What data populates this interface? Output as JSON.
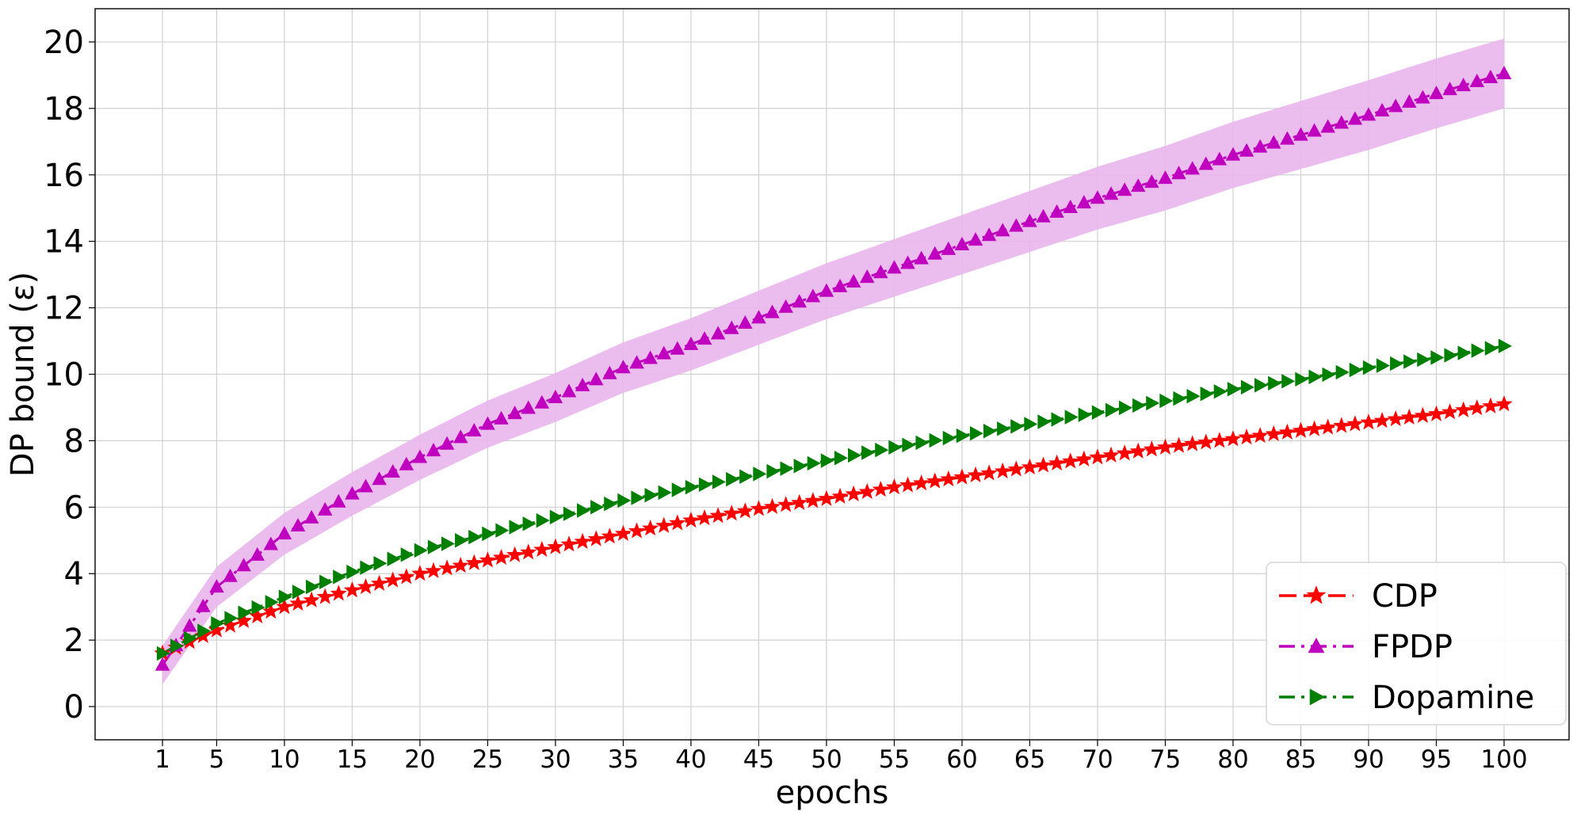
{
  "chart_data": {
    "type": "line",
    "xlabel": "epochs",
    "ylabel": "DP bound (ε)",
    "xlim": [
      1,
      100
    ],
    "ylim": [
      -1,
      21
    ],
    "xticks": [
      1,
      5,
      10,
      15,
      20,
      25,
      30,
      35,
      40,
      45,
      50,
      55,
      60,
      65,
      70,
      75,
      80,
      85,
      90,
      95,
      100
    ],
    "yticks": [
      0,
      2,
      4,
      6,
      8,
      10,
      12,
      14,
      16,
      18,
      20
    ],
    "grid": true,
    "legend_position": "bottom-right",
    "x": [
      1,
      5,
      10,
      15,
      20,
      25,
      30,
      35,
      40,
      45,
      50,
      55,
      60,
      65,
      70,
      75,
      80,
      85,
      90,
      95,
      100
    ],
    "series": [
      {
        "name": "CDP",
        "color": "#ff0000",
        "line_style": "dashed",
        "marker": "star",
        "values": [
          1.6,
          2.3,
          3.0,
          3.5,
          4.0,
          4.4,
          4.8,
          5.2,
          5.6,
          5.95,
          6.25,
          6.6,
          6.9,
          7.2,
          7.5,
          7.8,
          8.05,
          8.3,
          8.55,
          8.8,
          9.1
        ]
      },
      {
        "name": "FPDP",
        "color": "#bf00bf",
        "band_color": "#e9b5ec",
        "line_style": "dashdot",
        "marker": "triangle-up",
        "values": [
          1.25,
          3.6,
          5.2,
          6.4,
          7.5,
          8.5,
          9.3,
          10.2,
          10.9,
          11.7,
          12.5,
          13.2,
          13.9,
          14.6,
          15.3,
          15.9,
          16.6,
          17.2,
          17.8,
          18.45,
          19.05
        ],
        "band_half_width": 1.05
      },
      {
        "name": "Dopamine",
        "color": "#007f00",
        "line_style": "dashdot",
        "marker": "triangle-right",
        "values": [
          1.6,
          2.5,
          3.3,
          4.05,
          4.7,
          5.2,
          5.7,
          6.2,
          6.6,
          7.0,
          7.4,
          7.8,
          8.15,
          8.5,
          8.85,
          9.2,
          9.55,
          9.85,
          10.2,
          10.5,
          10.85
        ]
      }
    ]
  }
}
